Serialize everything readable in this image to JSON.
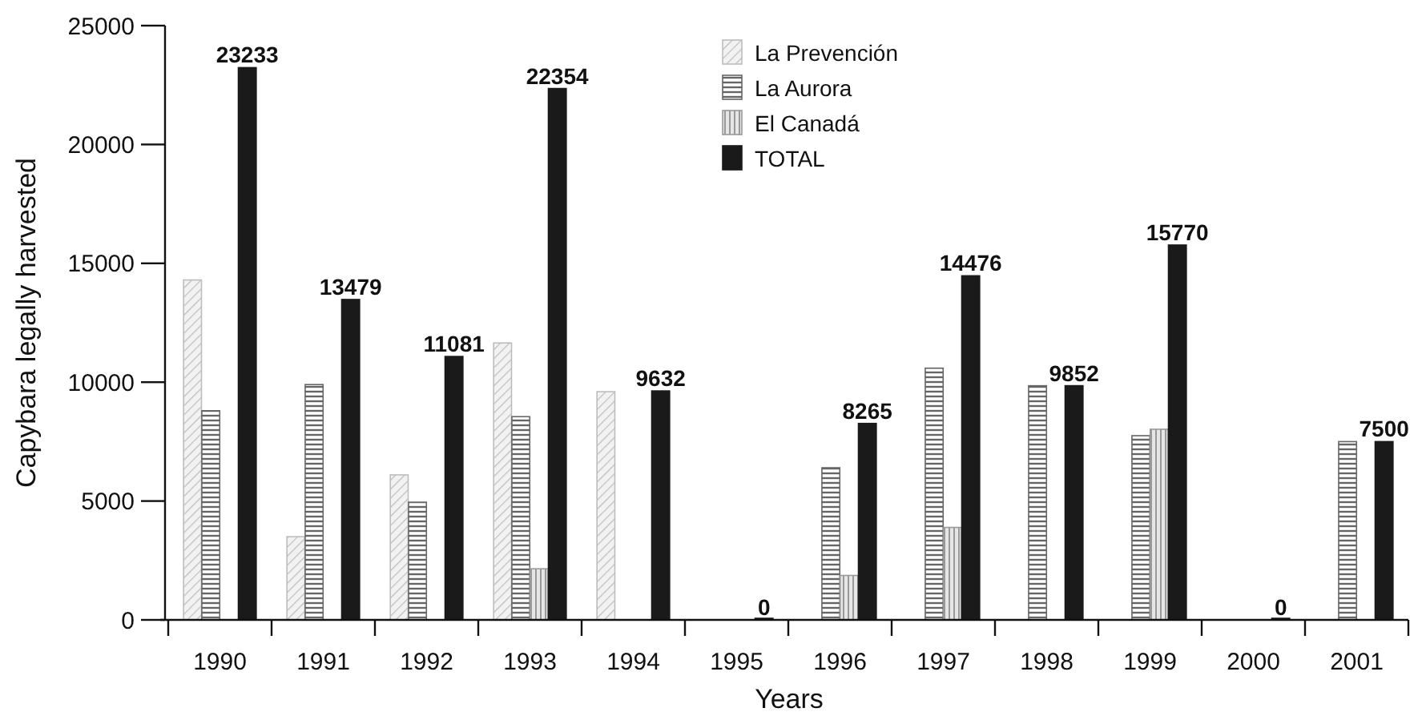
{
  "chart_data": {
    "type": "bar",
    "categories": [
      "1990",
      "1991",
      "1992",
      "1993",
      "1994",
      "1995",
      "1996",
      "1997",
      "1998",
      "1999",
      "2000",
      "2001"
    ],
    "series": [
      {
        "name": "La Prevención",
        "color": "#bdbdbd",
        "values": [
          14300,
          3500,
          6100,
          11650,
          9600,
          null,
          null,
          null,
          null,
          null,
          null,
          null
        ]
      },
      {
        "name": "La Aurora",
        "color": "#666666",
        "values": [
          8800,
          9900,
          4950,
          8550,
          null,
          null,
          6400,
          10590,
          9850,
          7750,
          null,
          7500
        ]
      },
      {
        "name": "El Canadá",
        "color": "#999999",
        "values": [
          null,
          null,
          null,
          2150,
          null,
          null,
          1870,
          3890,
          null,
          8020,
          null,
          null
        ]
      },
      {
        "name": "TOTAL",
        "color": "#1a1a1a",
        "values": [
          23233,
          13479,
          11081,
          22354,
          9632,
          0,
          8265,
          14476,
          9852,
          15770,
          0,
          7500
        ],
        "value_labels": [
          "23233",
          "13479",
          "11081",
          "22354",
          "9632",
          "0",
          "8265",
          "14476",
          "9852",
          "15770",
          "0",
          "7500"
        ]
      }
    ],
    "xlabel": "Years",
    "ylabel": "Capybara legally harvested",
    "ylim": [
      0,
      25000
    ],
    "yticks": [
      0,
      5000,
      10000,
      15000,
      20000,
      25000
    ],
    "legend": "top",
    "grid": false
  }
}
